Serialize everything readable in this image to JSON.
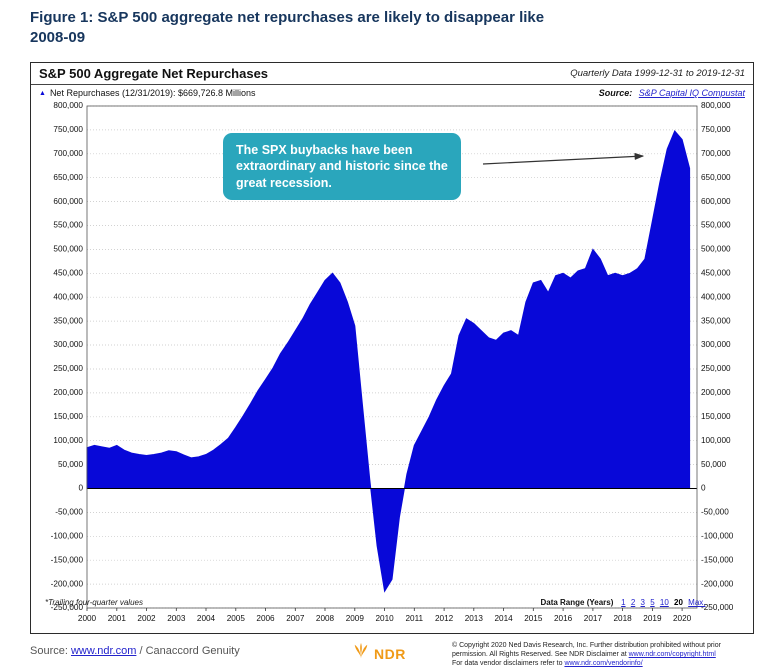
{
  "figure_title": {
    "line1": "Figure 1: S&P 500 aggregate net repurchases are likely to disappear like",
    "line2": "2008-09"
  },
  "chart": {
    "title": "S&P 500 Aggregate Net Repurchases",
    "period_label": "Quarterly Data 1999-12-31 to 2019-12-31",
    "legend_label": "Net Repurchases (12/31/2019): $669,726.8 Millions",
    "source_label": "Source:",
    "source_link": "S&P Capital IQ Compustat",
    "callout_text": "The SPX buybacks have been extraordinary and historic since the great recession.",
    "footnote": "*Trailing four-quarter values",
    "data_range_label": "Data Range (Years)",
    "data_range_options": [
      "1",
      "2",
      "3",
      "5",
      "10",
      "20",
      "Max."
    ],
    "data_range_active": "20"
  },
  "chart_data": {
    "type": "area",
    "title": "S&P 500 Aggregate Net Repurchases",
    "unit": "Millions USD",
    "x_start": 2000.0,
    "x_step": 0.25,
    "x_tick_labels": [
      "2000",
      "2001",
      "2002",
      "2003",
      "2004",
      "2005",
      "2006",
      "2007",
      "2008",
      "2009",
      "2010",
      "2011",
      "2012",
      "2013",
      "2014",
      "2015",
      "2016",
      "2017",
      "2018",
      "2019",
      "2020"
    ],
    "ylim": [
      -250000,
      800000
    ],
    "y_tick_step": 50000,
    "grid": true,
    "last_value": 669726.8,
    "series": [
      {
        "name": "Net Repurchases",
        "values": [
          85000,
          90000,
          87000,
          84000,
          90000,
          80000,
          74000,
          71000,
          69000,
          71000,
          74000,
          79000,
          77000,
          70000,
          64000,
          66000,
          71000,
          80000,
          92000,
          105000,
          128000,
          152000,
          178000,
          205000,
          228000,
          252000,
          282000,
          305000,
          330000,
          355000,
          385000,
          410000,
          435000,
          450000,
          430000,
          390000,
          340000,
          180000,
          20000,
          -120000,
          -215000,
          -190000,
          -60000,
          30000,
          90000,
          120000,
          150000,
          185000,
          215000,
          240000,
          320000,
          355000,
          345000,
          330000,
          315000,
          310000,
          325000,
          330000,
          320000,
          390000,
          430000,
          435000,
          410000,
          445000,
          450000,
          440000,
          455000,
          460000,
          500000,
          480000,
          445000,
          450000,
          445000,
          450000,
          460000,
          480000,
          560000,
          640000,
          710000,
          748000,
          730000,
          669726.8
        ]
      }
    ]
  },
  "footer": {
    "source_label": "Source:",
    "source_link": "www.ndr.com",
    "source_rest": "/ Canaccord Genuity",
    "ndr_logo_text": "NDR",
    "copyright_line1": "© Copyright 2020 Ned Davis Research, Inc. Further distribution prohibited without prior",
    "copyright_line2_text": "permission. All Rights Reserved. See NDR Disclaimer at ",
    "copyright_line2_link": "www.ndr.com/copyright.html",
    "copyright_line3_text": "For data vendor disclaimers refer to ",
    "copyright_line3_link": "www.ndr.com/vendorinfo/"
  },
  "colors": {
    "area_blue": "#0808d8",
    "title_navy": "#17365d",
    "callout_teal": "#2aa6bc",
    "link_blue": "#2323cc",
    "ndr_orange": "#f09a17"
  }
}
